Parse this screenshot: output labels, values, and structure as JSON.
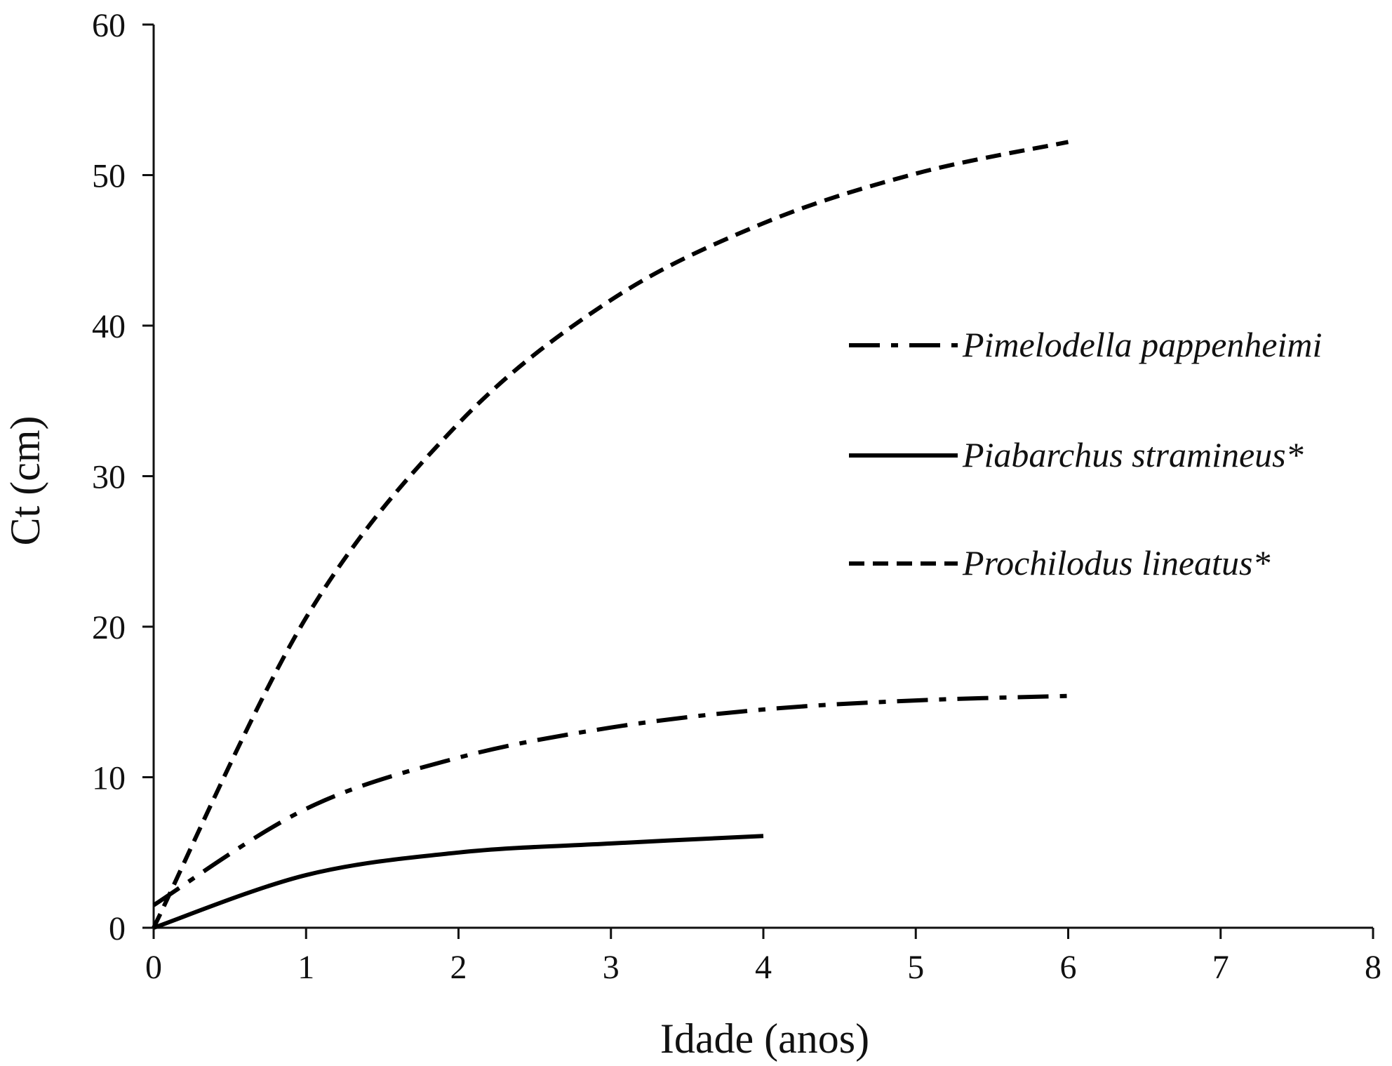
{
  "chart_data": {
    "type": "line",
    "xlabel": "Idade (anos)",
    "ylabel": "Ct (cm)",
    "xlim": [
      0,
      8
    ],
    "ylim": [
      0,
      60
    ],
    "xticks": [
      0,
      1,
      2,
      3,
      4,
      5,
      6,
      7,
      8
    ],
    "yticks": [
      0,
      10,
      20,
      30,
      40,
      50,
      60
    ],
    "grid": false,
    "legend": "right",
    "series": [
      {
        "name": "Pimelodella pappenheimi",
        "style": "dash-dot",
        "color": "#000000",
        "x": [
          0,
          1,
          2,
          3,
          4,
          5,
          6
        ],
        "y": [
          1.5,
          7.9,
          11.3,
          13.3,
          14.5,
          15.1,
          15.4
        ]
      },
      {
        "name": "Piabarchus stramineus*",
        "style": "solid",
        "color": "#000000",
        "x": [
          0,
          1,
          2,
          3,
          4
        ],
        "y": [
          0,
          3.5,
          5.0,
          5.6,
          6.1
        ]
      },
      {
        "name": "Prochilodus lineatus*",
        "style": "dashed",
        "color": "#000000",
        "x": [
          0,
          1,
          2,
          3,
          4,
          5,
          6
        ],
        "y": [
          0,
          20.6,
          33.5,
          41.7,
          46.8,
          50.1,
          52.2
        ]
      }
    ]
  }
}
